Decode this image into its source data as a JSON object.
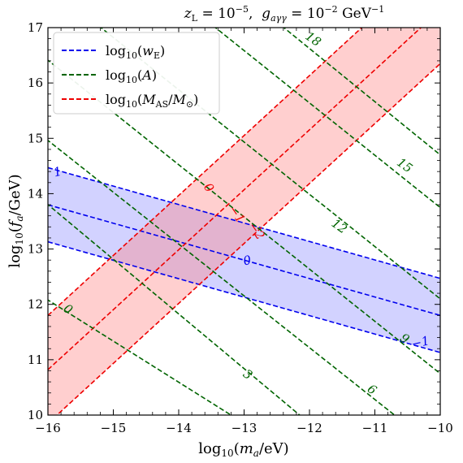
{
  "chart_data": {
    "type": "line",
    "title": "z_L = 10^-5,  g_aγγ = 10^-2 GeV^-1",
    "title_parts": {
      "z_sym": "z",
      "z_sub": "L",
      "z_eq": " = 10",
      "z_exp": "−5",
      "sep": ",  ",
      "g_sym": "g",
      "g_sub": "aγγ",
      "g_eq": " = 10",
      "g_exp": "−2",
      "g_unit": " GeV",
      "g_unit_exp": "−1"
    },
    "xlabel": "log10(m_a/eV)",
    "ylabel": "log10(f_a/GeV)",
    "xlim": [
      -16,
      -10
    ],
    "ylim": [
      10,
      17
    ],
    "xticks": [
      "−16",
      "−15",
      "−14",
      "−13",
      "−12",
      "−11",
      "−10"
    ],
    "yticks": [
      "10",
      "11",
      "12",
      "13",
      "14",
      "15",
      "16",
      "17"
    ],
    "xtick_values": [
      -16,
      -15,
      -14,
      -13,
      -12,
      -11,
      -10
    ],
    "ytick_values": [
      10,
      11,
      12,
      13,
      14,
      15,
      16,
      17
    ],
    "legend_position": "top-left",
    "legend": [
      {
        "label": "log10(w_E)",
        "color": "#0000ee",
        "style": "dashed"
      },
      {
        "label": "log10(A)",
        "color": "#006400",
        "style": "dashed"
      },
      {
        "label": "log10(M_AS/M_⊙)",
        "color": "#ee0000",
        "style": "dashed"
      }
    ],
    "series": [
      {
        "name": "log10(w_E)",
        "label": "1",
        "color": "#0000ee",
        "x": [
          -16,
          -10
        ],
        "y": [
          14.47,
          12.47
        ]
      },
      {
        "name": "log10(w_E)",
        "label": "0",
        "color": "#0000ee",
        "x": [
          -16,
          -10
        ],
        "y": [
          13.8,
          11.8
        ]
      },
      {
        "name": "log10(w_E)",
        "label": "−1",
        "color": "#0000ee",
        "x": [
          -16,
          -10
        ],
        "y": [
          13.13,
          11.13
        ]
      },
      {
        "name": "log10(M_AS/M_⊙)",
        "label": "0",
        "color": "#ee0000",
        "x": [
          -16,
          -10
        ],
        "y": [
          11.8,
          18.3
        ]
      },
      {
        "name": "log10(M_AS/M_⊙)",
        "label": "−1",
        "color": "#ee0000",
        "x": [
          -16,
          -10
        ],
        "y": [
          10.82,
          17.32
        ]
      },
      {
        "name": "log10(M_AS/M_⊙)",
        "label": "−2",
        "color": "#ee0000",
        "x": [
          -16,
          -10
        ],
        "y": [
          9.85,
          16.35
        ]
      },
      {
        "name": "log10(A)",
        "label": "0",
        "color": "#006400",
        "x": [
          -16.5,
          -13.2
        ],
        "y": [
          12.45,
          10
        ]
      },
      {
        "name": "log10(A)",
        "label": "3",
        "color": "#006400",
        "x": [
          -16.2,
          -12.15
        ],
        "y": [
          14.0,
          10
        ]
      },
      {
        "name": "log10(A)",
        "label": "6",
        "color": "#006400",
        "x": [
          -16.2,
          -10.7
        ],
        "y": [
          15.15,
          10
        ]
      },
      {
        "name": "log10(A)",
        "label": "9",
        "color": "#006400",
        "x": [
          -16.2,
          -10
        ],
        "y": [
          16.6,
          10.75
        ]
      },
      {
        "name": "log10(A)",
        "label": "12",
        "color": "#006400",
        "x": [
          -15.4,
          -10
        ],
        "y": [
          17.2,
          12.1
        ]
      },
      {
        "name": "log10(A)",
        "label": "15",
        "color": "#006400",
        "x": [
          -13.65,
          -10
        ],
        "y": [
          17.2,
          13.75
        ]
      },
      {
        "name": "log10(A)",
        "label": "18",
        "color": "#006400",
        "x": [
          -12.6,
          -10
        ],
        "y": [
          17.2,
          14.7
        ]
      }
    ],
    "bands": [
      {
        "name": "w_E band",
        "color": "#8a8aff",
        "upper": [
          -16,
          14.47,
          -10,
          12.47
        ],
        "lower": [
          -16,
          13.13,
          -10,
          11.13
        ]
      },
      {
        "name": "M_AS band",
        "color": "#ff8080",
        "upper": [
          -16,
          11.8,
          -10,
          18.3
        ],
        "lower": [
          -16,
          9.85,
          -10,
          16.35
        ]
      }
    ],
    "contour_labels": [
      {
        "text": "1",
        "color": "#0000ee",
        "x": -15.85,
        "y": 14.38,
        "angle": -13
      },
      {
        "text": "0",
        "color": "#0000ee",
        "x": -12.95,
        "y": 12.78,
        "angle": -13
      },
      {
        "text": "−1",
        "color": "#0000ee",
        "x": -10.3,
        "y": 11.3,
        "angle": -13
      },
      {
        "text": "0",
        "color": "#ee0000",
        "x": -13.55,
        "y": 14.1,
        "angle": 55
      },
      {
        "text": "−1",
        "color": "#ee0000",
        "x": -13.12,
        "y": 13.62,
        "angle": 55
      },
      {
        "text": "−2",
        "color": "#ee0000",
        "x": -12.82,
        "y": 13.32,
        "angle": 55
      },
      {
        "text": "0",
        "color": "#006400",
        "x": -15.7,
        "y": 11.9,
        "angle": 35
      },
      {
        "text": "3",
        "color": "#006400",
        "x": -12.95,
        "y": 10.72,
        "angle": 35
      },
      {
        "text": "6",
        "color": "#006400",
        "x": -11.05,
        "y": 10.45,
        "angle": 35
      },
      {
        "text": "9",
        "color": "#006400",
        "x": -10.55,
        "y": 11.37,
        "angle": 35
      },
      {
        "text": "12",
        "color": "#006400",
        "x": -11.55,
        "y": 13.4,
        "angle": 35
      },
      {
        "text": "15",
        "color": "#006400",
        "x": -10.55,
        "y": 14.5,
        "angle": 35
      },
      {
        "text": "18",
        "color": "#006400",
        "x": -11.95,
        "y": 16.78,
        "angle": 35
      }
    ],
    "grid": false
  }
}
